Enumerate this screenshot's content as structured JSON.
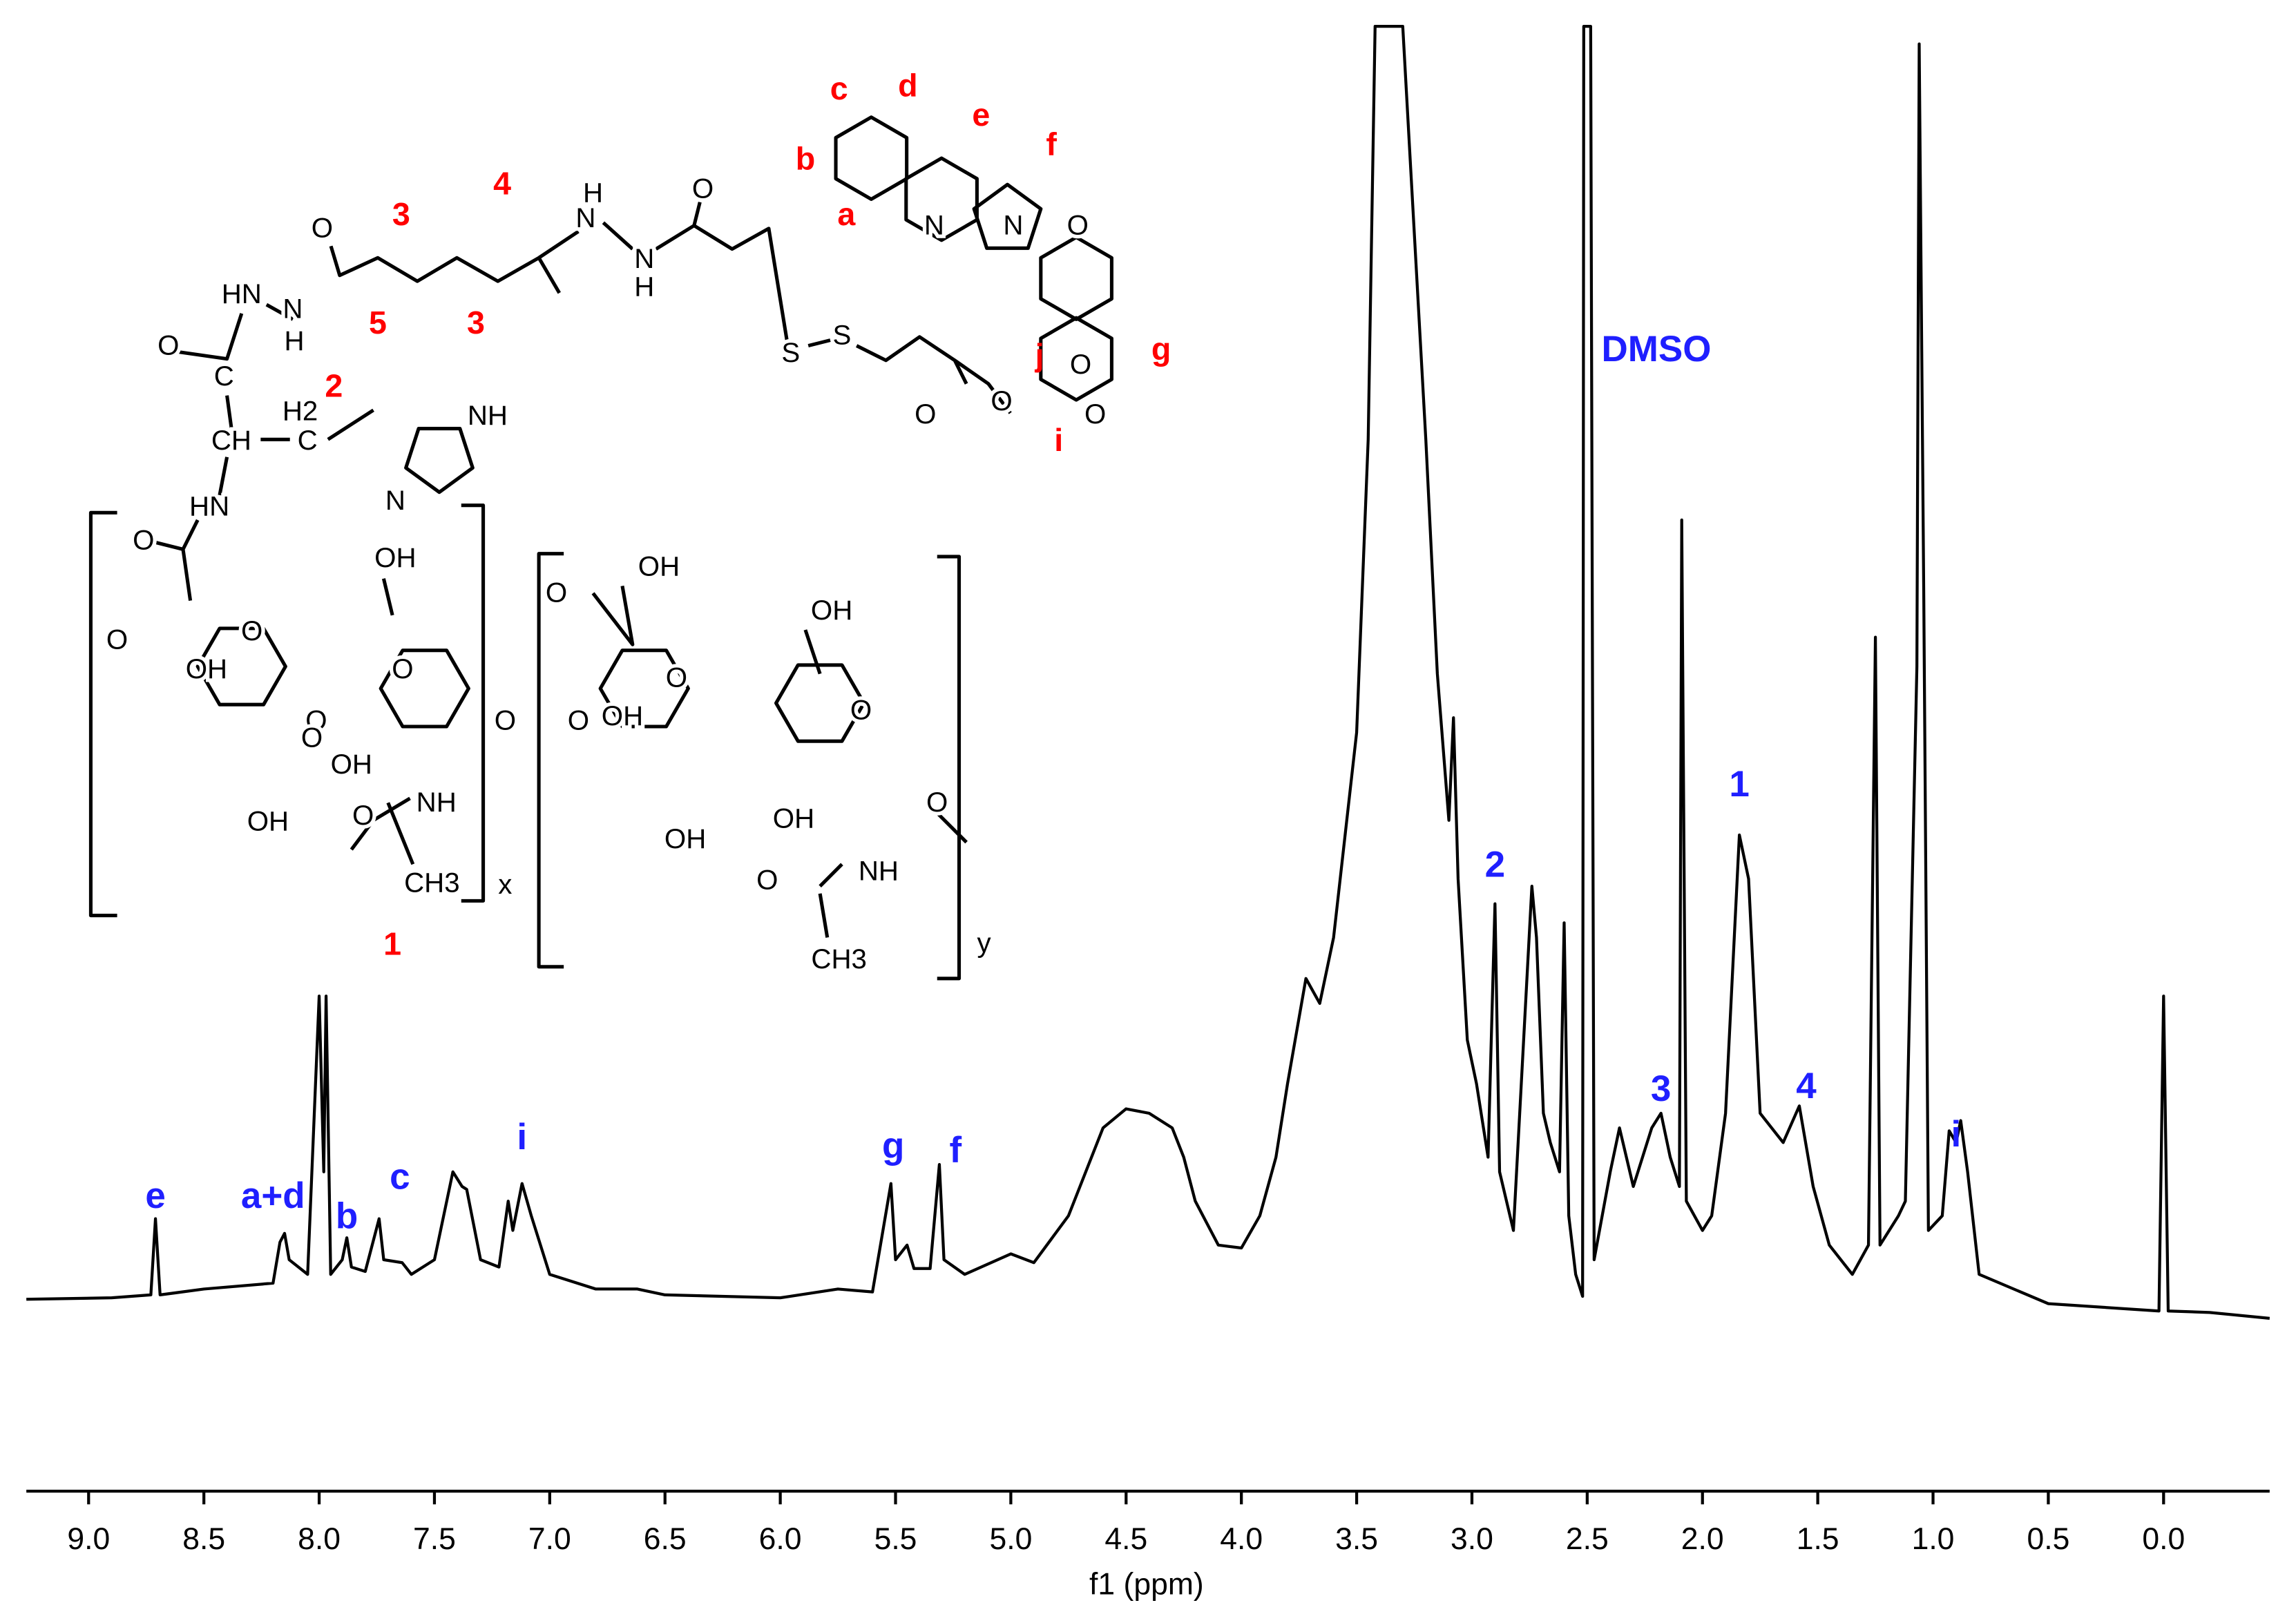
{
  "chart_data": {
    "type": "line",
    "xlabel": "f1 (ppm)",
    "xlim": [
      9.27,
      -0.46
    ],
    "ylim": [
      0,
      100
    ],
    "xticks": [
      {
        "value": 9,
        "label": "9.0"
      },
      {
        "value": 8.5,
        "label": "8.5"
      },
      {
        "value": 8,
        "label": "8.0"
      },
      {
        "value": 7.5,
        "label": "7.5"
      },
      {
        "value": 7,
        "label": "7.0"
      },
      {
        "value": 6.5,
        "label": "6.5"
      },
      {
        "value": 6,
        "label": "6.0"
      },
      {
        "value": 5.5,
        "label": "5.5"
      },
      {
        "value": 5,
        "label": "5.0"
      },
      {
        "value": 4.5,
        "label": "4.5"
      },
      {
        "value": 4,
        "label": "4.0"
      },
      {
        "value": 3.5,
        "label": "3.5"
      },
      {
        "value": 3,
        "label": "3.0"
      },
      {
        "value": 2.5,
        "label": "2.5"
      },
      {
        "value": 2,
        "label": "2.0"
      },
      {
        "value": 1.5,
        "label": "1.5"
      },
      {
        "value": 1,
        "label": "1.0"
      },
      {
        "value": 0.5,
        "label": "0.5"
      },
      {
        "value": 0,
        "label": "0.0"
      }
    ],
    "color": "#000000",
    "x": [
      9.27,
      8.9,
      8.73,
      8.71,
      8.69,
      8.5,
      8.2,
      8.17,
      8.15,
      8.13,
      8.05,
      8.0,
      7.98,
      7.97,
      7.95,
      7.9,
      7.88,
      7.86,
      7.8,
      7.74,
      7.72,
      7.64,
      7.6,
      7.5,
      7.42,
      7.38,
      7.36,
      7.3,
      7.22,
      7.18,
      7.16,
      7.12,
      7.08,
      7.0,
      6.8,
      6.62,
      6.5,
      6.0,
      5.75,
      5.6,
      5.52,
      5.5,
      5.45,
      5.42,
      5.35,
      5.31,
      5.29,
      5.2,
      5.0,
      4.9,
      4.75,
      4.6,
      4.5,
      4.4,
      4.3,
      4.25,
      4.2,
      4.1,
      4.0,
      3.92,
      3.85,
      3.8,
      3.72,
      3.66,
      3.6,
      3.5,
      3.45,
      3.42,
      3.3,
      3.2,
      3.15,
      3.1,
      3.08,
      3.06,
      3.02,
      2.98,
      2.93,
      2.9,
      2.88,
      2.82,
      2.74,
      2.72,
      2.69,
      2.66,
      2.62,
      2.6,
      2.58,
      2.55,
      2.52,
      2.515,
      2.485,
      2.47,
      2.4,
      2.36,
      2.3,
      2.22,
      2.18,
      2.14,
      2.1,
      2.09,
      2.07,
      2.0,
      1.96,
      1.9,
      1.84,
      1.8,
      1.75,
      1.65,
      1.58,
      1.52,
      1.45,
      1.35,
      1.28,
      1.25,
      1.23,
      1.15,
      1.12,
      1.07,
      1.06,
      1.04,
      1.02,
      0.96,
      0.93,
      0.9,
      0.88,
      0.85,
      0.8,
      0.5,
      0.02,
      0.0,
      -0.02,
      -0.2,
      -0.46
    ],
    "values": [
      13.1,
      13.2,
      13.4,
      18.6,
      13.4,
      13.8,
      14.2,
      17,
      17.6,
      15.8,
      14.8,
      33.8,
      21.8,
      33.8,
      14.8,
      15.8,
      17.3,
      15.3,
      15,
      18.6,
      15.8,
      15.6,
      14.8,
      15.8,
      21.8,
      20.8,
      20.6,
      15.8,
      15.3,
      19.8,
      17.8,
      21,
      18.8,
      14.8,
      13.8,
      13.8,
      13.4,
      13.2,
      13.8,
      13.6,
      21,
      15.8,
      16.8,
      15.2,
      15.2,
      22.3,
      15.8,
      14.8,
      16.2,
      15.6,
      18.8,
      24.8,
      26.1,
      25.8,
      24.8,
      22.8,
      19.8,
      16.8,
      16.6,
      18.8,
      22.8,
      27.8,
      35,
      33.3,
      37.8,
      51.8,
      71.8,
      100,
      100,
      71.8,
      55.8,
      45.8,
      52.8,
      41.8,
      30.8,
      27.8,
      22.8,
      40.1,
      21.8,
      17.8,
      41.3,
      37.8,
      25.8,
      23.8,
      21.8,
      38.8,
      18.8,
      14.8,
      13.3,
      100,
      100,
      15.8,
      21.8,
      24.8,
      20.8,
      24.8,
      25.8,
      22.8,
      20.8,
      66.3,
      19.8,
      17.8,
      18.8,
      25.8,
      44.8,
      41.8,
      25.8,
      23.8,
      26.3,
      20.8,
      16.8,
      14.8,
      16.8,
      58.3,
      16.8,
      18.8,
      19.8,
      56.3,
      98.8,
      60.8,
      17.8,
      18.8,
      24.6,
      23.8,
      25.3,
      21.8,
      14.8,
      12.8,
      12.3,
      33.8,
      12.3,
      12.2,
      11.8
    ],
    "annotation_color": "#1f1fff",
    "annotations": [
      {
        "text": "e",
        "x": 8.71,
        "y": 20
      },
      {
        "text": "a+d",
        "x": 8.2,
        "y": 20
      },
      {
        "text": "b",
        "x": 7.88,
        "y": 18.6
      },
      {
        "text": "c",
        "x": 7.65,
        "y": 21.3
      },
      {
        "text": "i",
        "x": 7.12,
        "y": 24
      },
      {
        "text": "g",
        "x": 5.51,
        "y": 23.4
      },
      {
        "text": "f",
        "x": 5.24,
        "y": 23.1
      },
      {
        "text": "DMSO",
        "x": 2.2,
        "y": 77.8
      },
      {
        "text": "2",
        "x": 2.9,
        "y": 42.6
      },
      {
        "text": "3",
        "x": 2.18,
        "y": 27.3
      },
      {
        "text": "1",
        "x": 1.84,
        "y": 48.1
      },
      {
        "text": "4",
        "x": 1.55,
        "y": 27.5
      },
      {
        "text": "i",
        "x": 0.9,
        "y": 24.2
      }
    ]
  },
  "structure": {
    "label_color": "#000000",
    "numbering_color": "#ff0000",
    "labels": [
      "O",
      "HN",
      "N",
      "H",
      "O",
      "C",
      "H2",
      "C",
      "CH",
      "NH",
      "N",
      "HN",
      "O",
      "OH",
      "O",
      "O",
      "OH",
      "O",
      "O",
      "OH",
      "O",
      "OH",
      "NH",
      "O",
      "CH3",
      "x",
      "O",
      "OH",
      "O",
      "O",
      "OH",
      "O",
      "OH",
      "O",
      "OH",
      "OH",
      "NH",
      "O",
      "CH3",
      "y",
      "O",
      "N",
      "H",
      "N",
      "H",
      "O",
      "S",
      "S",
      "N",
      "N",
      "O",
      "O",
      "O",
      "O",
      "O"
    ],
    "numbering": [
      "c",
      "d",
      "e",
      "b",
      "a",
      "f",
      "3",
      "4",
      "5",
      "3",
      "j",
      "g",
      "2",
      "1",
      "i"
    ]
  }
}
